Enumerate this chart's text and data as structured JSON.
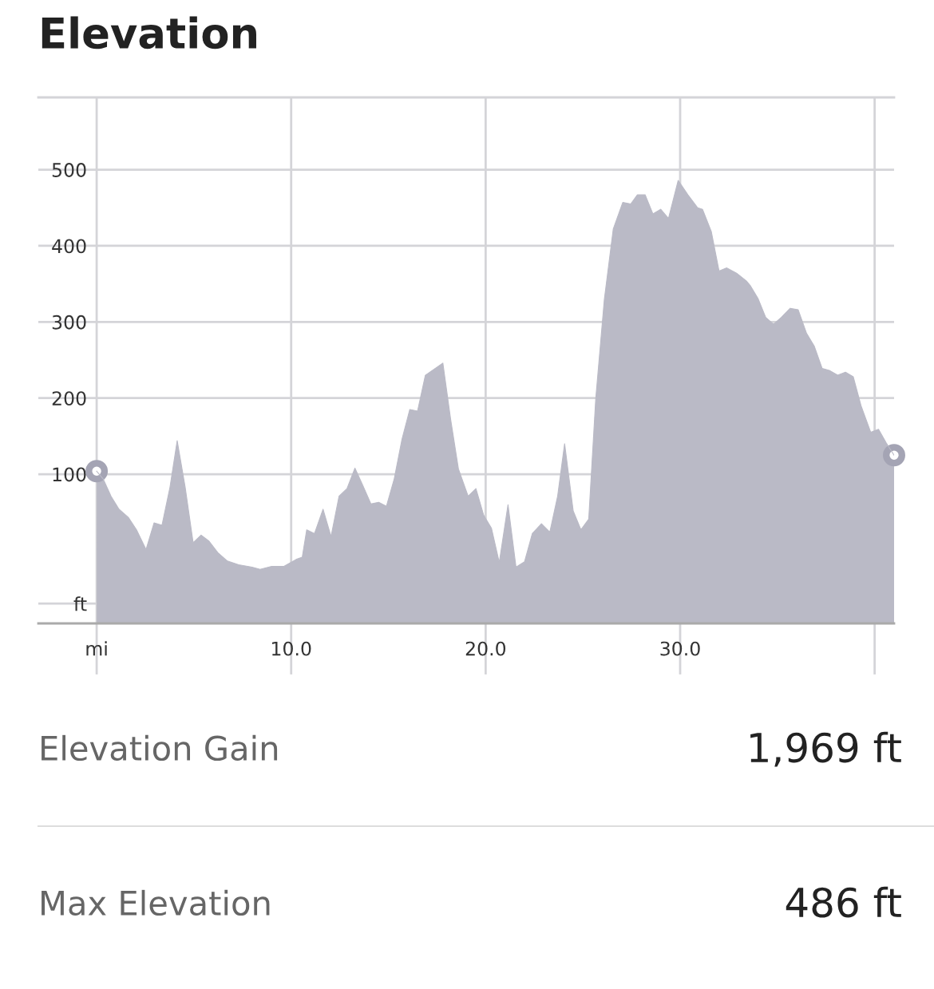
{
  "chart_data": {
    "type": "area",
    "title": "Elevation",
    "x": [
      0,
      0.33,
      0.74,
      1.15,
      1.64,
      2.05,
      2.54,
      2.95,
      3.36,
      3.77,
      4.14,
      4.55,
      4.96,
      5.37,
      5.78,
      6.23,
      6.72,
      7.3,
      7.99,
      8.4,
      9.0,
      9.63,
      10.25,
      10.57,
      10.8,
      11.2,
      11.64,
      12.05,
      12.46,
      12.87,
      13.28,
      13.69,
      14.1,
      14.5,
      14.9,
      15.3,
      15.7,
      16.1,
      16.5,
      16.9,
      17.8,
      18.2,
      18.6,
      19.1,
      19.5,
      19.9,
      20.3,
      20.7,
      21.15,
      21.56,
      22.0,
      22.4,
      22.87,
      23.3,
      23.7,
      24.06,
      24.5,
      24.9,
      25.3,
      25.66,
      26.1,
      26.56,
      27.05,
      27.46,
      27.8,
      28.2,
      28.6,
      29.0,
      29.4,
      29.9,
      30.4,
      30.9,
      31.15,
      31.6,
      32.0,
      32.4,
      32.9,
      33.4,
      33.6,
      34.0,
      34.4,
      34.8,
      35.2,
      35.66,
      36.07,
      36.5,
      36.9,
      37.3,
      37.7,
      38.1,
      38.5,
      38.9,
      39.3,
      39.8,
      40.2,
      40.6,
      41.0
    ],
    "series": [
      {
        "color": "#babac6",
        "values": [
          104,
          94,
          71,
          54,
          43,
          27,
          1,
          36,
          33,
          83,
          144,
          83,
          10,
          20,
          12,
          -3,
          -14,
          -19,
          -22,
          -25,
          -21,
          -21,
          -12,
          -9,
          27,
          22,
          54,
          18,
          71,
          81,
          108,
          85,
          61,
          63,
          58,
          94,
          146,
          185,
          183,
          230,
          246,
          172,
          107,
          71,
          81,
          46,
          29,
          -16,
          60,
          -22,
          -15,
          22,
          35,
          24,
          71,
          140,
          52,
          27,
          41,
          199,
          329,
          422,
          457,
          455,
          467,
          467,
          442,
          448,
          436,
          486,
          467,
          450,
          448,
          419,
          367,
          371,
          364,
          354,
          348,
          331,
          306,
          297,
          306,
          318,
          316,
          285,
          268,
          239,
          236,
          230,
          234,
          228,
          190,
          155,
          159,
          141,
          125
        ]
      },
      {
        "type": "scatter",
        "color": "#a4a4b4",
        "marker": "circle",
        "x": [
          0,
          41.0
        ],
        "values": [
          104,
          125
        ]
      }
    ],
    "xlim": [
      -3,
      41
    ],
    "ylim": [
      -96,
      595
    ],
    "xticks": [
      {
        "value": 0,
        "label": "mi"
      },
      {
        "value": 10,
        "label": "10.0"
      },
      {
        "value": 20,
        "label": "20.0"
      },
      {
        "value": 30,
        "label": "30.0"
      },
      {
        "value": 40,
        "label": null
      }
    ],
    "yticks": [
      {
        "value": -70,
        "label": "ft"
      },
      100,
      200,
      300,
      400,
      500
    ],
    "grid": true,
    "annotations": [
      "Elevation Gain",
      "1,969 ft",
      "Max Elevation",
      "486 ft"
    ]
  }
}
